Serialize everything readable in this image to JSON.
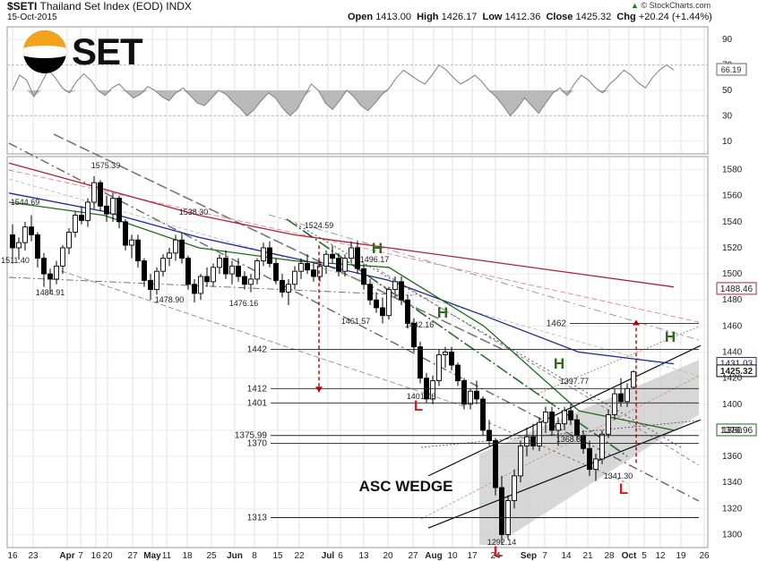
{
  "header": {
    "symbol": "$SETI",
    "name": "Thailand Set Index (EOD)",
    "exchange": "INDX",
    "date": "15-Oct-2015",
    "open_label": "Open",
    "open": "1413.00",
    "high_label": "High",
    "high": "1426.17",
    "low_label": "Low",
    "low": "1412.36",
    "close_label": "Close",
    "close": "1425.32",
    "chg_label": "Chg",
    "chg": "+20.24 (+1.44%)",
    "arrow": "▲",
    "credit": "© StockCharts.com"
  },
  "logo": {
    "text": "SET"
  },
  "colors": {
    "ma_green": "#1f6b1f",
    "ma_blue": "#1f2a8a",
    "ma_red": "#b0203a",
    "arrow_red": "#c00000",
    "H_green": "#2e6b1f",
    "L_red": "#d02020",
    "wedge_fill": "#c9c9c9"
  },
  "chart_data": {
    "type": "candlestick",
    "indicator": {
      "name": "RSI",
      "ticks": [
        90,
        70,
        50,
        30,
        10
      ],
      "last_value_label": "66.19",
      "overbought": 70,
      "oversold": 30,
      "values": [
        50,
        62,
        58,
        45,
        55,
        66,
        60,
        52,
        48,
        57,
        63,
        58,
        50,
        46,
        52,
        55,
        49,
        44,
        47,
        53,
        50,
        45,
        42,
        48,
        52,
        46,
        40,
        38,
        44,
        50,
        47,
        41,
        36,
        30,
        35,
        42,
        48,
        44,
        36,
        30,
        35,
        45,
        55,
        50,
        40,
        35,
        42,
        50,
        45,
        38,
        34,
        40,
        47,
        52,
        60,
        66,
        62,
        58,
        55,
        62,
        70,
        66,
        60,
        55,
        58,
        62,
        57,
        50,
        45,
        38,
        30,
        36,
        44,
        38,
        32,
        40,
        48,
        52,
        46,
        55,
        62,
        58,
        52,
        48,
        55,
        60,
        66,
        62,
        56,
        52,
        60,
        66,
        70,
        66
      ]
    },
    "price_axis": {
      "min": 1290,
      "max": 1590,
      "ticks": [
        1300,
        1320,
        1340,
        1360,
        1380,
        1400,
        1420,
        1440,
        1460,
        1480,
        1500,
        1520,
        1540,
        1560,
        1580
      ]
    },
    "x_ticks": [
      "16",
      "23",
      "Apr",
      "7",
      "16",
      "20",
      "27",
      "May",
      "11",
      "18",
      "25",
      "Jun",
      "8",
      "15",
      "22",
      "Jul",
      "6",
      "13",
      "20",
      "27",
      "Aug",
      "10",
      "17",
      "24",
      "Sep",
      "7",
      "14",
      "21",
      "28",
      "Oct",
      "5",
      "12",
      "19",
      "26"
    ],
    "candles": [
      [
        1530,
        1538,
        1508,
        1520
      ],
      [
        1520,
        1528,
        1511,
        1524
      ],
      [
        1524,
        1540,
        1518,
        1536
      ],
      [
        1536,
        1545,
        1525,
        1530
      ],
      [
        1530,
        1532,
        1505,
        1512
      ],
      [
        1512,
        1516,
        1490,
        1500
      ],
      [
        1500,
        1504,
        1485,
        1496
      ],
      [
        1496,
        1510,
        1492,
        1506
      ],
      [
        1506,
        1522,
        1500,
        1520
      ],
      [
        1520,
        1535,
        1515,
        1532
      ],
      [
        1532,
        1548,
        1528,
        1545
      ],
      [
        1545,
        1552,
        1538,
        1541
      ],
      [
        1541,
        1558,
        1536,
        1555
      ],
      [
        1555,
        1575,
        1550,
        1570
      ],
      [
        1570,
        1572,
        1548,
        1552
      ],
      [
        1552,
        1560,
        1540,
        1546
      ],
      [
        1546,
        1562,
        1540,
        1558
      ],
      [
        1558,
        1560,
        1535,
        1540
      ],
      [
        1540,
        1542,
        1518,
        1522
      ],
      [
        1522,
        1530,
        1512,
        1526
      ],
      [
        1526,
        1530,
        1505,
        1510
      ],
      [
        1510,
        1512,
        1490,
        1495
      ],
      [
        1495,
        1500,
        1480,
        1488
      ],
      [
        1488,
        1505,
        1484,
        1502
      ],
      [
        1502,
        1515,
        1498,
        1512
      ],
      [
        1512,
        1520,
        1506,
        1516
      ],
      [
        1516,
        1530,
        1510,
        1526
      ],
      [
        1526,
        1532,
        1508,
        1512
      ],
      [
        1512,
        1514,
        1488,
        1492
      ],
      [
        1492,
        1496,
        1478,
        1485
      ],
      [
        1485,
        1500,
        1480,
        1498
      ],
      [
        1498,
        1505,
        1490,
        1494
      ],
      [
        1494,
        1508,
        1490,
        1505
      ],
      [
        1505,
        1515,
        1500,
        1512
      ],
      [
        1512,
        1518,
        1496,
        1500
      ],
      [
        1500,
        1510,
        1492,
        1506
      ],
      [
        1506,
        1512,
        1494,
        1498
      ],
      [
        1498,
        1502,
        1488,
        1492
      ],
      [
        1492,
        1500,
        1486,
        1496
      ],
      [
        1496,
        1512,
        1492,
        1510
      ],
      [
        1510,
        1524,
        1506,
        1520
      ],
      [
        1520,
        1525,
        1505,
        1508
      ],
      [
        1508,
        1512,
        1492,
        1495
      ],
      [
        1495,
        1500,
        1482,
        1486
      ],
      [
        1486,
        1496,
        1476,
        1492
      ],
      [
        1492,
        1506,
        1488,
        1502
      ],
      [
        1502,
        1512,
        1496,
        1508
      ],
      [
        1508,
        1515,
        1500,
        1503
      ],
      [
        1503,
        1508,
        1494,
        1498
      ],
      [
        1498,
        1510,
        1494,
        1506
      ],
      [
        1506,
        1518,
        1500,
        1515
      ],
      [
        1515,
        1522,
        1508,
        1512
      ],
      [
        1512,
        1516,
        1498,
        1502
      ],
      [
        1502,
        1515,
        1498,
        1512
      ],
      [
        1512,
        1525,
        1508,
        1520
      ],
      [
        1520,
        1525,
        1500,
        1504
      ],
      [
        1504,
        1508,
        1488,
        1492
      ],
      [
        1492,
        1496,
        1476,
        1480
      ],
      [
        1480,
        1486,
        1470,
        1474
      ],
      [
        1474,
        1482,
        1462,
        1468
      ],
      [
        1468,
        1490,
        1465,
        1488
      ],
      [
        1488,
        1498,
        1482,
        1494
      ],
      [
        1494,
        1498,
        1476,
        1480
      ],
      [
        1480,
        1484,
        1458,
        1462
      ],
      [
        1462,
        1466,
        1440,
        1444
      ],
      [
        1444,
        1448,
        1416,
        1420
      ],
      [
        1420,
        1424,
        1401,
        1404
      ],
      [
        1404,
        1422,
        1400,
        1418
      ],
      [
        1418,
        1442,
        1414,
        1438
      ],
      [
        1438,
        1444,
        1428,
        1440
      ],
      [
        1440,
        1444,
        1426,
        1430
      ],
      [
        1430,
        1432,
        1414,
        1418
      ],
      [
        1418,
        1420,
        1396,
        1400
      ],
      [
        1400,
        1412,
        1396,
        1410
      ],
      [
        1410,
        1418,
        1400,
        1404
      ],
      [
        1404,
        1406,
        1376,
        1380
      ],
      [
        1380,
        1388,
        1368,
        1372
      ],
      [
        1372,
        1374,
        1330,
        1336
      ],
      [
        1336,
        1345,
        1292,
        1300
      ],
      [
        1300,
        1330,
        1296,
        1326
      ],
      [
        1326,
        1350,
        1320,
        1345
      ],
      [
        1345,
        1372,
        1340,
        1368
      ],
      [
        1368,
        1382,
        1360,
        1375
      ],
      [
        1375,
        1385,
        1365,
        1368
      ],
      [
        1368,
        1390,
        1364,
        1386
      ],
      [
        1386,
        1398,
        1378,
        1394
      ],
      [
        1394,
        1398,
        1376,
        1380
      ],
      [
        1380,
        1390,
        1368,
        1385
      ],
      [
        1385,
        1398,
        1380,
        1395
      ],
      [
        1395,
        1400,
        1384,
        1388
      ],
      [
        1388,
        1392,
        1372,
        1376
      ],
      [
        1376,
        1380,
        1362,
        1366
      ],
      [
        1366,
        1372,
        1345,
        1350
      ],
      [
        1350,
        1362,
        1341,
        1358
      ],
      [
        1358,
        1380,
        1354,
        1377
      ],
      [
        1377,
        1396,
        1374,
        1392
      ],
      [
        1392,
        1412,
        1388,
        1408
      ],
      [
        1408,
        1420,
        1398,
        1402
      ],
      [
        1402,
        1416,
        1398,
        1412
      ],
      [
        1413,
        1426,
        1412,
        1425
      ]
    ],
    "price_labels": {
      "1575_39": "1575.39",
      "1544_69": "1544.69",
      "1538_30": "1538.30",
      "1524_59": "1524.59",
      "1511_40": "1511.40",
      "1484_91": "1484.91",
      "1478_90": "1478.90",
      "1476_16": "1476.16",
      "1496_17": "1496.17",
      "1461_57": "1461.57",
      "1442_16": "1442.16",
      "1401_06": "1401.06",
      "1397_77": "1397.77",
      "1368_31": "1368.31",
      "1341_30": "1341.30",
      "1292_14": "1292.14"
    },
    "level_labels": {
      "l1462": "1462",
      "l1442": "1442",
      "l1412": "1412",
      "l1401": "1401",
      "l1375": "1375.99",
      "l1370": "1370",
      "l1313": "1313"
    },
    "right_badges": {
      "ma_red": "1488.46",
      "ma_blue": "1431.03",
      "close": "1425.32",
      "ma_green": "1379.96"
    },
    "annotations": {
      "wedge": "ASC WEDGE",
      "H": "H",
      "L": "L"
    },
    "moving_averages": [
      {
        "color": "ma_red",
        "values": [
          1585,
          1565,
          1545,
          1530,
          1520,
          1510,
          1500,
          1490
        ]
      },
      {
        "color": "ma_blue",
        "values": [
          1562,
          1548,
          1528,
          1512,
          1495,
          1468,
          1440,
          1431
        ]
      },
      {
        "color": "ma_green",
        "values": [
          1555,
          1545,
          1520,
          1510,
          1505,
          1460,
          1395,
          1380
        ]
      }
    ]
  }
}
